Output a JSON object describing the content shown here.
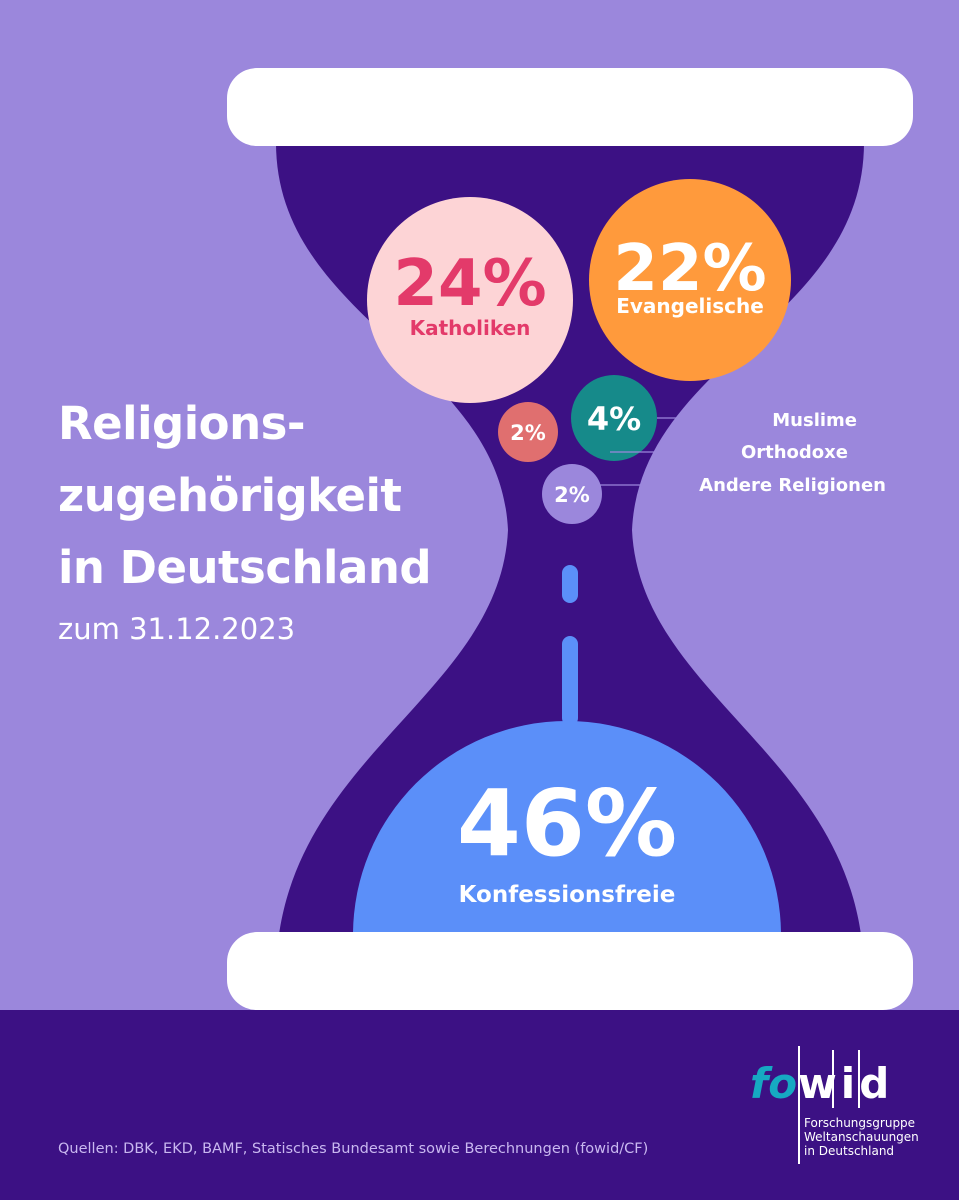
{
  "title_lines": [
    "Religions-",
    "zugehörigkeit",
    "in Deutschland"
  ],
  "subtitle": "zum 31.12.2023",
  "sources": "Quellen: DBK, EKD, BAMF, Statisches Bundesamt sowie Berechnungen (fowid/CF)",
  "logo": {
    "fo": "fo",
    "wid": "wid",
    "tagline": [
      "Forschungsgruppe",
      "Weltanschauungen",
      "in Deutschland"
    ]
  },
  "colors": {
    "background": "#9b87dc",
    "hourglass": "#3c1184",
    "caps": "#ffffff",
    "katholiken": "#fdd4d6",
    "katholiken_text": "#e33a6a",
    "evangelische": "#ff9a3c",
    "muslime": "#168a8a",
    "orthodoxe": "#e06f6f",
    "andere": "#9b87dc",
    "konfessionsfreie": "#5b8ff9",
    "drip": "#5b8ff9"
  },
  "chart_data": {
    "type": "pie",
    "title": "Religionszugehörigkeit in Deutschland",
    "subtitle": "zum 31.12.2023",
    "unit": "%",
    "categories": [
      "Katholiken",
      "Evangelische",
      "Muslime",
      "Orthodoxe",
      "Andere Religionen",
      "Konfessionsfreie"
    ],
    "values": [
      24,
      22,
      4,
      2,
      2,
      46
    ],
    "value_labels": [
      "24%",
      "22%",
      "4%",
      "2%",
      "2%",
      "46%"
    ]
  }
}
